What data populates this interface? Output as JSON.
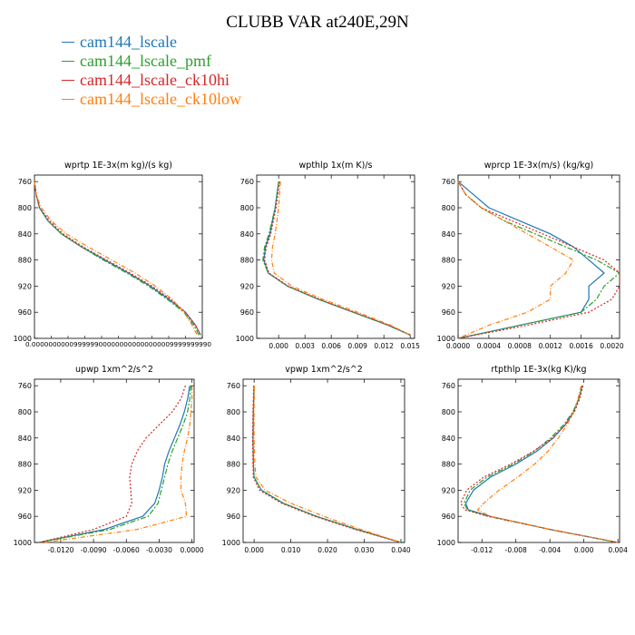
{
  "title": "CLUBB VAR at240E,29N",
  "colors": {
    "cam144_lscale": "#1f77b4",
    "cam144_lscale_pmf": "#2ca02c",
    "cam144_lscale_ck10hi": "#d62728",
    "cam144_lscale_ck10low": "#ff7f0e"
  },
  "legend": [
    {
      "name": "cam144_lscale",
      "color": "#1f77b4"
    },
    {
      "name": "cam144_lscale_pmf",
      "color": "#2ca02c"
    },
    {
      "name": "cam144_lscale_ck10hi",
      "color": "#d62728"
    },
    {
      "name": "cam144_lscale_ck10low",
      "color": "#ff7f0e"
    }
  ],
  "chart_data": [
    {
      "type": "line",
      "title": "wprtp  1E-3x(m kg)/(s kg)",
      "ylim": [
        1000,
        750
      ],
      "yticks": [
        "760",
        "800",
        "840",
        "880",
        "920",
        "960",
        "1000"
      ],
      "xlim": [
        0,
        1
      ],
      "xtick_labels_overlapping": "0.000000000 ... 0.0099999990",
      "y": [
        760,
        780,
        800,
        820,
        840,
        860,
        880,
        900,
        920,
        940,
        960,
        980,
        995
      ],
      "series": [
        {
          "name": "cam144_lscale",
          "x": [
            0.0,
            0.01,
            0.03,
            0.08,
            0.16,
            0.28,
            0.42,
            0.56,
            0.69,
            0.8,
            0.9,
            0.96,
            0.99
          ]
        },
        {
          "name": "cam144_lscale_pmf",
          "x": [
            0.0,
            0.01,
            0.03,
            0.08,
            0.16,
            0.28,
            0.41,
            0.55,
            0.68,
            0.79,
            0.89,
            0.95,
            0.98
          ]
        },
        {
          "name": "cam144_lscale_ck10hi",
          "x": [
            0.0,
            0.01,
            0.03,
            0.09,
            0.17,
            0.29,
            0.43,
            0.57,
            0.7,
            0.81,
            0.9,
            0.96,
            0.99
          ]
        },
        {
          "name": "cam144_lscale_ck10low",
          "x": [
            0.0,
            0.01,
            0.04,
            0.1,
            0.19,
            0.32,
            0.46,
            0.6,
            0.72,
            0.82,
            0.89,
            0.94,
            0.97
          ]
        }
      ]
    },
    {
      "type": "line",
      "title": "wpthlp  1x(m K)/s",
      "ylim": [
        1000,
        750
      ],
      "yticks": [
        "760",
        "800",
        "840",
        "880",
        "920",
        "960",
        "1000"
      ],
      "xlim": [
        -0.0025,
        0.0155
      ],
      "xticks": [
        "0.000",
        "0.003",
        "0.006",
        "0.009",
        "0.012",
        "0.015"
      ],
      "y": [
        760,
        800,
        840,
        860,
        880,
        900,
        920,
        940,
        960,
        980,
        995
      ],
      "series": [
        {
          "name": "cam144_lscale",
          "x": [
            0.0,
            -0.0004,
            -0.001,
            -0.0015,
            -0.0017,
            -0.0012,
            0.001,
            0.0045,
            0.0085,
            0.0125,
            0.015
          ]
        },
        {
          "name": "cam144_lscale_pmf",
          "x": [
            0.0,
            -0.0004,
            -0.0011,
            -0.0016,
            -0.0018,
            -0.0012,
            0.001,
            0.0045,
            0.0085,
            0.0125,
            0.015
          ]
        },
        {
          "name": "cam144_lscale_ck10hi",
          "x": [
            0.0001,
            -0.0003,
            -0.0009,
            -0.0014,
            -0.0016,
            -0.0011,
            0.0011,
            0.0046,
            0.0086,
            0.0126,
            0.0151
          ]
        },
        {
          "name": "cam144_lscale_ck10low",
          "x": [
            0.0002,
            0.0,
            -0.0004,
            -0.0007,
            -0.0008,
            -0.0005,
            0.0015,
            0.005,
            0.009,
            0.0128,
            0.015
          ]
        }
      ]
    },
    {
      "type": "line",
      "title": "wprcp  1E-3x(m/s) (kg/kg)",
      "ylim": [
        1000,
        750
      ],
      "yticks": [
        "760",
        "800",
        "840",
        "880",
        "920",
        "960",
        "1000"
      ],
      "xlim": [
        0,
        0.0021
      ],
      "xticks": [
        "0.0000",
        "0.0004",
        "0.0008",
        "0.0012",
        "0.0016",
        "0.0020"
      ],
      "y": [
        760,
        780,
        800,
        820,
        840,
        860,
        880,
        900,
        910,
        920,
        940,
        960,
        980,
        1000
      ],
      "series": [
        {
          "name": "cam144_lscale",
          "x": [
            0.0,
            0.0002,
            0.0004,
            0.0008,
            0.0012,
            0.0015,
            0.0017,
            0.0019,
            0.0018,
            0.0017,
            0.0017,
            0.0016,
            0.0008,
            0.0
          ]
        },
        {
          "name": "cam144_lscale_pmf",
          "x": [
            0.0,
            0.0001,
            0.0003,
            0.0006,
            0.001,
            0.0014,
            0.0018,
            0.0021,
            0.002,
            0.0019,
            0.0018,
            0.0016,
            0.0008,
            0.0
          ]
        },
        {
          "name": "cam144_lscale_ck10hi",
          "x": [
            0.0,
            0.0001,
            0.0003,
            0.0007,
            0.0011,
            0.0015,
            0.0019,
            0.0021,
            0.0021,
            0.0021,
            0.002,
            0.0017,
            0.0009,
            0.0
          ]
        },
        {
          "name": "cam144_lscale_ck10low",
          "x": [
            0.0,
            0.0001,
            0.0003,
            0.0006,
            0.0009,
            0.0012,
            0.0015,
            0.0014,
            0.0013,
            0.0012,
            0.0012,
            0.0009,
            0.0004,
            0.0
          ]
        }
      ]
    },
    {
      "type": "line",
      "title": "upwp  1xm^2/s^2",
      "ylim": [
        1000,
        750
      ],
      "yticks": [
        "760",
        "800",
        "840",
        "880",
        "920",
        "960",
        "1000"
      ],
      "xlim": [
        -0.0144,
        0.0002
      ],
      "xticks": [
        "-0.0120",
        "-0.0090",
        "-0.0060",
        "-0.0030",
        "0.0000"
      ],
      "y": [
        760,
        780,
        800,
        820,
        840,
        860,
        880,
        900,
        920,
        940,
        960,
        980,
        1000
      ],
      "series": [
        {
          "name": "cam144_lscale",
          "x": [
            -0.0002,
            -0.0004,
            -0.0007,
            -0.0011,
            -0.0016,
            -0.0021,
            -0.0025,
            -0.0027,
            -0.003,
            -0.0034,
            -0.0045,
            -0.008,
            -0.014
          ]
        },
        {
          "name": "cam144_lscale_pmf",
          "x": [
            -0.0001,
            -0.0002,
            -0.0004,
            -0.0008,
            -0.0013,
            -0.0018,
            -0.0022,
            -0.0025,
            -0.0028,
            -0.0031,
            -0.004,
            -0.0075,
            -0.014
          ]
        },
        {
          "name": "cam144_lscale_ck10hi",
          "x": [
            -0.0006,
            -0.001,
            -0.0018,
            -0.003,
            -0.0042,
            -0.005,
            -0.0055,
            -0.0057,
            -0.0056,
            -0.0055,
            -0.006,
            -0.009,
            -0.014
          ]
        },
        {
          "name": "cam144_lscale_ck10low",
          "x": [
            0.0,
            0.0,
            -0.0001,
            -0.0002,
            -0.0004,
            -0.0007,
            -0.0009,
            -0.001,
            -0.001,
            -0.0006,
            -0.0005,
            -0.005,
            -0.0135
          ]
        }
      ]
    },
    {
      "type": "line",
      "title": "vpwp  1xm^2/s^2",
      "ylim": [
        1000,
        750
      ],
      "yticks": [
        "760",
        "800",
        "840",
        "880",
        "920",
        "960",
        "1000"
      ],
      "xlim": [
        -0.003,
        0.041
      ],
      "xticks": [
        "0.000",
        "0.010",
        "0.020",
        "0.030",
        "0.040"
      ],
      "y": [
        760,
        800,
        840,
        880,
        900,
        920,
        940,
        960,
        980,
        1000
      ],
      "series": [
        {
          "name": "cam144_lscale",
          "x": [
            0.0,
            -0.0002,
            -0.0003,
            -0.0002,
            0.0,
            0.002,
            0.008,
            0.017,
            0.028,
            0.04
          ]
        },
        {
          "name": "cam144_lscale_pmf",
          "x": [
            0.0,
            -0.0002,
            -0.0003,
            -0.0002,
            0.0,
            0.002,
            0.008,
            0.017,
            0.028,
            0.04
          ]
        },
        {
          "name": "cam144_lscale_ck10hi",
          "x": [
            -0.0001,
            -0.0003,
            -0.0004,
            -0.0003,
            -0.0002,
            0.0015,
            0.0075,
            0.0165,
            0.0275,
            0.04
          ]
        },
        {
          "name": "cam144_lscale_ck10low",
          "x": [
            0.0001,
            0.0,
            0.0,
            0.0002,
            0.0005,
            0.003,
            0.01,
            0.019,
            0.029,
            0.04
          ]
        }
      ]
    },
    {
      "type": "line",
      "title": "rtpthlp  1E-3x(kg K)/kg",
      "ylim": [
        1000,
        750
      ],
      "yticks": [
        "760",
        "800",
        "840",
        "880",
        "920",
        "960",
        "1000"
      ],
      "xlim": [
        -0.0148,
        0.0042
      ],
      "xticks": [
        "-0.012",
        "-0.008",
        "-0.004",
        "0.000",
        "0.004"
      ],
      "y": [
        760,
        780,
        800,
        820,
        840,
        860,
        880,
        900,
        920,
        940,
        950,
        960,
        980,
        1000
      ],
      "series": [
        {
          "name": "cam144_lscale",
          "x": [
            -0.0002,
            -0.0006,
            -0.0012,
            -0.0022,
            -0.0036,
            -0.0055,
            -0.008,
            -0.011,
            -0.013,
            -0.0139,
            -0.0136,
            -0.011,
            -0.004,
            0.004
          ]
        },
        {
          "name": "cam144_lscale_pmf",
          "x": [
            -0.0002,
            -0.0006,
            -0.0013,
            -0.0024,
            -0.0039,
            -0.0058,
            -0.0083,
            -0.0114,
            -0.0134,
            -0.0141,
            -0.0137,
            -0.0112,
            -0.004,
            0.004
          ]
        },
        {
          "name": "cam144_lscale_ck10hi",
          "x": [
            -0.0001,
            -0.0005,
            -0.0011,
            -0.0022,
            -0.0037,
            -0.0059,
            -0.0086,
            -0.0118,
            -0.0138,
            -0.0145,
            -0.014,
            -0.0113,
            -0.004,
            0.004
          ]
        },
        {
          "name": "cam144_lscale_ck10low",
          "x": [
            -0.0003,
            -0.0007,
            -0.0012,
            -0.002,
            -0.003,
            -0.0042,
            -0.0058,
            -0.0078,
            -0.01,
            -0.0118,
            -0.0125,
            -0.011,
            -0.004,
            0.004
          ]
        }
      ]
    }
  ]
}
